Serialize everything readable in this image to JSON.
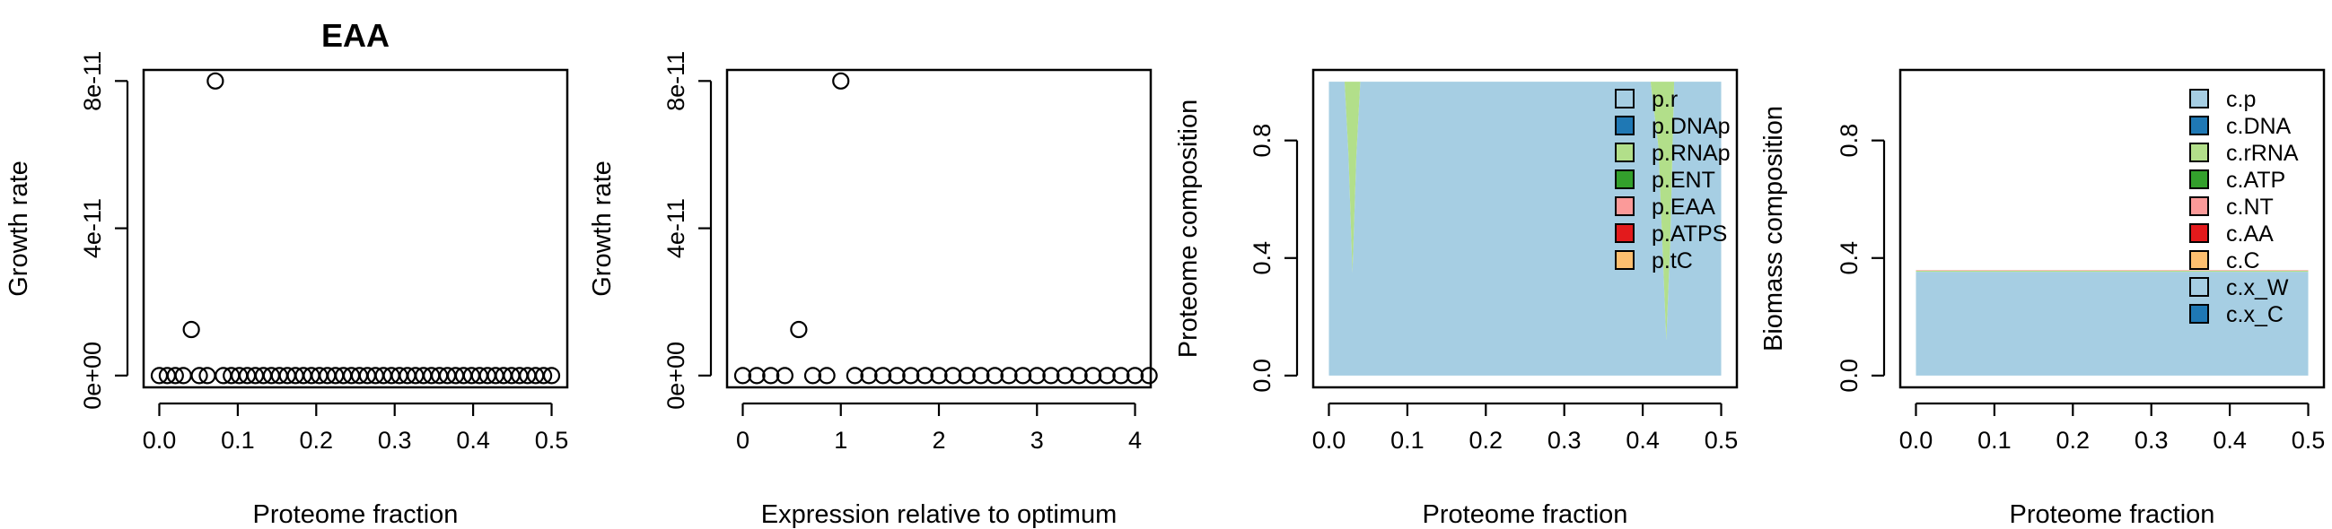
{
  "chart_data": [
    {
      "type": "scatter",
      "title": "EAA",
      "xlabel": "Proteome fraction",
      "ylabel": "Growth rate",
      "xlim": [
        -0.02,
        0.52
      ],
      "ylim": [
        -3.2e-12,
        8.3e-11
      ],
      "xticks": [
        0.0,
        0.1,
        0.2,
        0.3,
        0.4,
        0.5
      ],
      "xtick_labels": [
        "0.0",
        "0.1",
        "0.2",
        "0.3",
        "0.4",
        "0.5"
      ],
      "yticks": [
        0,
        4e-11,
        8e-11
      ],
      "ytick_labels": [
        "0e+00",
        "4e-11",
        "8e-11"
      ],
      "x": [
        0.0,
        0.0102,
        0.0204,
        0.0306,
        0.0408,
        0.051,
        0.0612,
        0.0714,
        0.0816,
        0.0918,
        0.102,
        0.1122,
        0.1224,
        0.1327,
        0.1429,
        0.1531,
        0.1633,
        0.1735,
        0.1837,
        0.1939,
        0.2041,
        0.2143,
        0.2245,
        0.2347,
        0.2449,
        0.2551,
        0.2653,
        0.2755,
        0.2857,
        0.2959,
        0.3061,
        0.3163,
        0.3265,
        0.3367,
        0.3469,
        0.3571,
        0.3673,
        0.3776,
        0.3878,
        0.398,
        0.4082,
        0.4184,
        0.4286,
        0.4388,
        0.449,
        0.4592,
        0.4694,
        0.4796,
        0.4898,
        0.5
      ],
      "y": [
        0,
        0,
        0,
        0,
        1.25e-11,
        0,
        0,
        8e-11,
        0,
        0,
        0,
        0,
        0,
        0,
        0,
        0,
        0,
        0,
        0,
        0,
        0,
        0,
        0,
        0,
        0,
        0,
        0,
        0,
        0,
        0,
        0,
        0,
        0,
        0,
        0,
        0,
        0,
        0,
        0,
        0,
        0,
        0,
        0,
        0,
        0,
        0,
        0,
        0,
        0,
        0
      ]
    },
    {
      "type": "scatter",
      "title": "",
      "xlabel": "Expression relative to optimum",
      "ylabel": "Growth rate",
      "xlim": [
        -0.16,
        4.16
      ],
      "ylim": [
        -3.2e-12,
        8.3e-11
      ],
      "xticks": [
        0,
        1,
        2,
        3,
        4
      ],
      "xtick_labels": [
        "0",
        "1",
        "2",
        "3",
        "4"
      ],
      "yticks": [
        0,
        4e-11,
        8e-11
      ],
      "ytick_labels": [
        "0e+00",
        "4e-11",
        "8e-11"
      ],
      "x": [
        0.0,
        0.143,
        0.286,
        0.429,
        0.571,
        0.714,
        0.857,
        1.0,
        1.143,
        1.286,
        1.429,
        1.571,
        1.714,
        1.857,
        2.0,
        2.143,
        2.286,
        2.429,
        2.571,
        2.714,
        2.857,
        3.0,
        3.143,
        3.286,
        3.429,
        3.571,
        3.714,
        3.857,
        4.0,
        4.143
      ],
      "y": [
        0,
        0,
        0,
        0,
        1.25e-11,
        0,
        0,
        8e-11,
        0,
        0,
        0,
        0,
        0,
        0,
        0,
        0,
        0,
        0,
        0,
        0,
        0,
        0,
        0,
        0,
        0,
        0,
        0,
        0,
        0,
        0
      ]
    },
    {
      "type": "area",
      "title": "",
      "xlabel": "Proteome fraction",
      "ylabel": "Proteome composition",
      "xlim": [
        -0.02,
        0.52
      ],
      "ylim": [
        -0.04,
        1.04
      ],
      "xticks": [
        0.0,
        0.1,
        0.2,
        0.3,
        0.4,
        0.5
      ],
      "xtick_labels": [
        "0.0",
        "0.1",
        "0.2",
        "0.3",
        "0.4",
        "0.5"
      ],
      "yticks": [
        0.0,
        0.4,
        0.8
      ],
      "ytick_labels": [
        "0.0",
        "0.4",
        "0.8"
      ],
      "legend_position": "top-right",
      "series": [
        {
          "name": "p.r",
          "color": "#a6cee3"
        },
        {
          "name": "p.DNAp",
          "color": "#1f78b4"
        },
        {
          "name": "p.RNAp",
          "color": "#b2df8a"
        },
        {
          "name": "p.ENT",
          "color": "#33a02c"
        },
        {
          "name": "p.EAA",
          "color": "#fb9a99"
        },
        {
          "name": "p.ATPS",
          "color": "#e31a1c"
        },
        {
          "name": "p.tC",
          "color": "#fdbf6f"
        }
      ],
      "stack": {
        "x": [
          0.0,
          0.02,
          0.025,
          0.03,
          0.035,
          0.04,
          0.1,
          0.2,
          0.3,
          0.4,
          0.41,
          0.42,
          0.425,
          0.43,
          0.435,
          0.44,
          0.5
        ],
        "bands": [
          {
            "series": "p.r",
            "values": [
              1,
              1,
              0.75,
              0.35,
              0.75,
              1,
              1,
              1,
              1,
              1,
              1,
              0.78,
              0.45,
              0.12,
              0.45,
              1,
              1
            ]
          },
          {
            "series": "p.RNAp",
            "values": [
              0,
              0,
              0.25,
              0.65,
              0.25,
              0,
              0,
              0,
              0,
              0,
              0,
              0.22,
              0.55,
              0.88,
              0.55,
              0,
              0
            ]
          }
        ]
      }
    },
    {
      "type": "area",
      "title": "",
      "xlabel": "Proteome fraction",
      "ylabel": "Biomass composition",
      "xlim": [
        -0.02,
        0.52
      ],
      "ylim": [
        -0.04,
        1.04
      ],
      "xticks": [
        0.0,
        0.1,
        0.2,
        0.3,
        0.4,
        0.5
      ],
      "xtick_labels": [
        "0.0",
        "0.1",
        "0.2",
        "0.3",
        "0.4",
        "0.5"
      ],
      "yticks": [
        0.0,
        0.4,
        0.8
      ],
      "ytick_labels": [
        "0.0",
        "0.4",
        "0.8"
      ],
      "legend_position": "top-right",
      "series": [
        {
          "name": "c.p",
          "color": "#a6cee3"
        },
        {
          "name": "c.DNA",
          "color": "#1f78b4"
        },
        {
          "name": "c.rRNA",
          "color": "#b2df8a"
        },
        {
          "name": "c.ATP",
          "color": "#33a02c"
        },
        {
          "name": "c.NT",
          "color": "#fb9a99"
        },
        {
          "name": "c.AA",
          "color": "#e31a1c"
        },
        {
          "name": "c.C",
          "color": "#fdbf6f"
        },
        {
          "name": "c.x_W",
          "color": "#a6cee3"
        },
        {
          "name": "c.x_C",
          "color": "#1f78b4"
        }
      ],
      "stack": {
        "x": [
          0.0,
          0.5
        ],
        "bands": [
          {
            "series": "c.p",
            "values": [
              0.353,
              0.353
            ]
          },
          {
            "series": "c.rRNA",
            "values": [
              0.004,
              0.004
            ]
          },
          {
            "series": "c.NT",
            "values": [
              0.002,
              0.002
            ]
          }
        ]
      }
    }
  ]
}
